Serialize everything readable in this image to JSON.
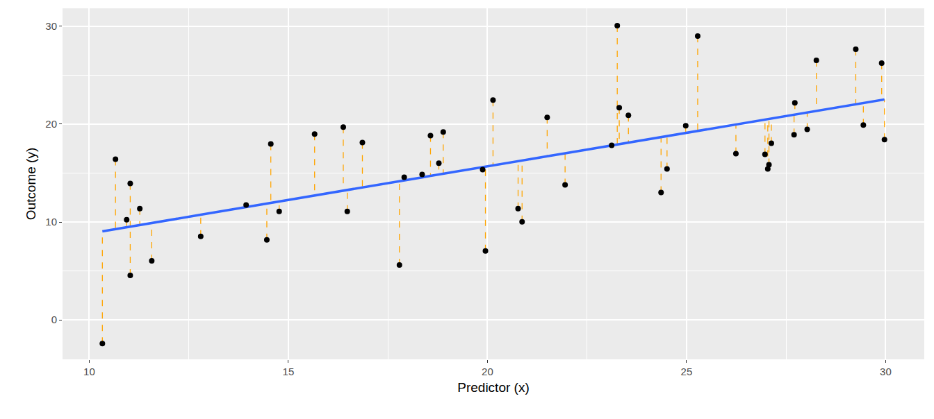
{
  "chart_data": {
    "type": "scatter",
    "x_label": "Predictor (x)",
    "y_label": "Outcome (y)",
    "x": [
      10.33,
      10.66,
      10.94,
      11.03,
      11.03,
      11.27,
      11.57,
      12.8,
      13.94,
      14.46,
      14.56,
      14.77,
      15.66,
      16.38,
      16.48,
      16.86,
      17.79,
      17.91,
      18.36,
      18.57,
      18.78,
      18.89,
      19.88,
      19.95,
      20.14,
      20.77,
      20.87,
      21.5,
      21.95,
      23.12,
      23.26,
      23.31,
      23.54,
      24.36,
      24.51,
      24.98,
      25.28,
      26.24,
      26.97,
      27.04,
      27.07,
      27.13,
      27.7,
      27.72,
      28.03,
      28.26,
      29.25,
      29.44,
      29.9,
      29.97
    ],
    "values": [
      -2.42,
      16.42,
      10.23,
      13.93,
      4.55,
      11.37,
      6.04,
      8.53,
      11.73,
      8.17,
      17.98,
      11.09,
      18.98,
      19.69,
      11.09,
      18.12,
      5.61,
      14.57,
      14.85,
      18.83,
      16.0,
      19.19,
      15.35,
      7.04,
      22.46,
      11.37,
      10.02,
      20.68,
      13.79,
      17.84,
      30.06,
      21.68,
      20.9,
      13.01,
      15.42,
      19.83,
      29.0,
      16.99,
      16.92,
      15.42,
      15.85,
      18.05,
      18.91,
      22.17,
      19.47,
      26.51,
      27.65,
      19.9,
      26.23,
      18.41
    ],
    "fitted": [
      9.05,
      9.27,
      9.47,
      9.53,
      9.53,
      9.69,
      9.9,
      10.74,
      11.53,
      11.88,
      11.95,
      12.1,
      12.71,
      13.2,
      13.27,
      13.53,
      14.17,
      14.25,
      14.56,
      14.71,
      14.85,
      14.92,
      15.6,
      15.65,
      15.78,
      16.21,
      16.28,
      16.71,
      17.02,
      17.82,
      17.92,
      17.95,
      18.11,
      18.67,
      18.78,
      19.1,
      19.3,
      19.96,
      20.46,
      20.51,
      20.53,
      20.57,
      20.96,
      20.98,
      21.19,
      21.35,
      22.03,
      22.16,
      22.48,
      22.52
    ],
    "color": "#000000",
    "marker": "circle",
    "xlim": [
      9.33,
      30.97
    ],
    "ylim": [
      -4.03,
      31.83
    ],
    "xticks": [
      10,
      15,
      20,
      25,
      30
    ],
    "yticks": [
      0,
      10,
      20,
      30
    ],
    "grid": true
  }
}
